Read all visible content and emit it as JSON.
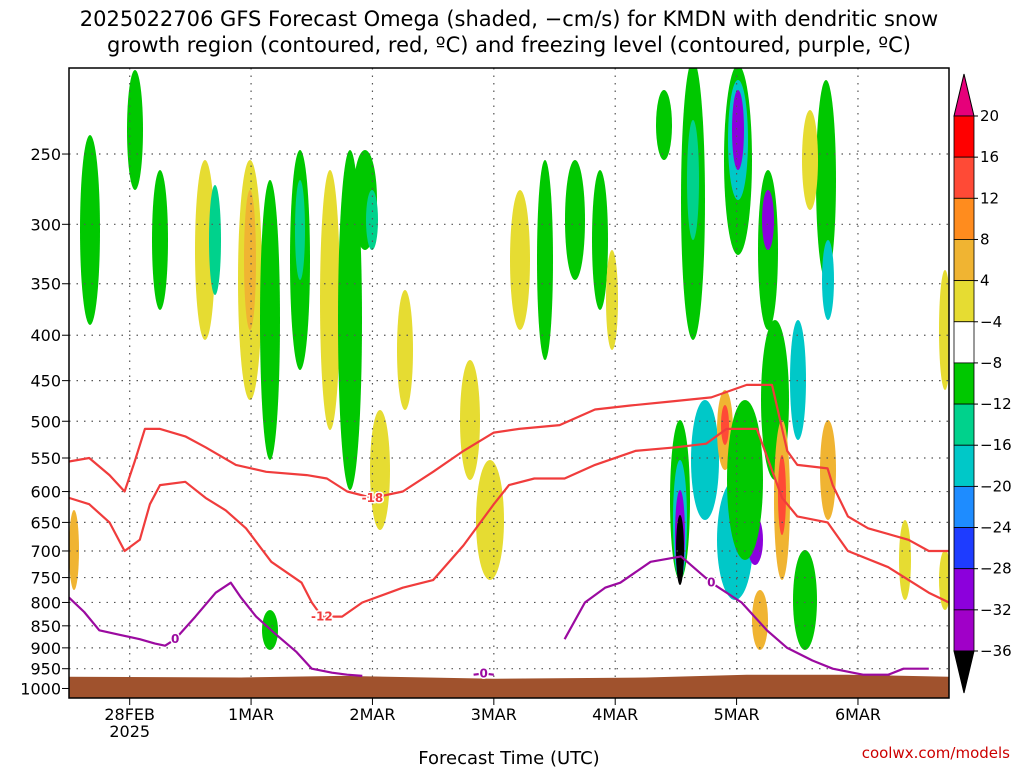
{
  "title_line1": "2025022706 GFS Forecast Omega (shaded, −cm/s) for KMDN with dendritic snow",
  "title_line2": "growth region (contoured, red, ºC) and freezing level (contoured, purple, ºC)",
  "credit": "coolwx.com/models",
  "chart_data": {
    "type": "heatmap",
    "title": "2025022706 GFS Forecast Omega (shaded, −cm/s) for KMDN with dendritic snow growth region (contoured, red, ºC) and freezing level (contoured, purple, ºC)",
    "xlabel": "Forecast Time (UTC)",
    "ylabel": "",
    "x_ticks": [
      {
        "label": "28FEB",
        "sublabel": "2025",
        "t": 18
      },
      {
        "label": "1MAR",
        "sublabel": "",
        "t": 42
      },
      {
        "label": "2MAR",
        "sublabel": "",
        "t": 66
      },
      {
        "label": "3MAR",
        "sublabel": "",
        "t": 90
      },
      {
        "label": "4MAR",
        "sublabel": "",
        "t": 114
      },
      {
        "label": "5MAR",
        "sublabel": "",
        "t": 138
      },
      {
        "label": "6MAR",
        "sublabel": "",
        "t": 162
      }
    ],
    "y_levels": [
      250,
      300,
      350,
      400,
      450,
      500,
      550,
      600,
      650,
      700,
      750,
      800,
      850,
      900,
      950,
      1000
    ],
    "y_top": 200,
    "y_bottom": 1025,
    "x_range": [
      6,
      180
    ],
    "grid": true,
    "colorbar": {
      "tick_labels": [
        "20",
        "16",
        "12",
        "8",
        "4",
        "−4",
        "−8",
        "−12",
        "−16",
        "−20",
        "−24",
        "−28",
        "−32",
        "−36"
      ],
      "colors": [
        "#ff0000",
        "#ff4a36",
        "#ff8c1e",
        "#f0b432",
        "#e6dc32",
        "#ffffff",
        "#00c800",
        "#00d28c",
        "#00c8c8",
        "#1e8cff",
        "#1e3cff",
        "#8c00dc",
        "#a000c8",
        "#a0a0a0"
      ],
      "top_color": "#e6007a",
      "bottom_color": "#000000"
    },
    "terrain_color": "#a0522d",
    "series": [
      {
        "label": "-18",
        "color": "#f03c3c",
        "points": [
          [
            6,
            555
          ],
          [
            10,
            550
          ],
          [
            14,
            575
          ],
          [
            17,
            600
          ],
          [
            19,
            555
          ],
          [
            21,
            510
          ],
          [
            24,
            510
          ],
          [
            29,
            520
          ],
          [
            33,
            535
          ],
          [
            39,
            560
          ],
          [
            45,
            570
          ],
          [
            53,
            575
          ],
          [
            57,
            580
          ],
          [
            61,
            600
          ],
          [
            66,
            610
          ],
          [
            72,
            600
          ],
          [
            78,
            570
          ],
          [
            84,
            540
          ],
          [
            90,
            515
          ],
          [
            95,
            510
          ],
          [
            103,
            505
          ],
          [
            110,
            485
          ],
          [
            117,
            480
          ],
          [
            125,
            475
          ],
          [
            133,
            470
          ],
          [
            140,
            455
          ],
          [
            145,
            455
          ],
          [
            148,
            540
          ],
          [
            150,
            560
          ],
          [
            156,
            565
          ],
          [
            157,
            590
          ],
          [
            160,
            640
          ],
          [
            164,
            660
          ],
          [
            172,
            680
          ],
          [
            176,
            700
          ],
          [
            180,
            700
          ]
        ]
      },
      {
        "label": "-12",
        "color": "#f03c3c",
        "points": [
          [
            6,
            610
          ],
          [
            10,
            620
          ],
          [
            14,
            650
          ],
          [
            17,
            700
          ],
          [
            20,
            680
          ],
          [
            22,
            620
          ],
          [
            24,
            590
          ],
          [
            29,
            585
          ],
          [
            33,
            610
          ],
          [
            37,
            630
          ],
          [
            41,
            660
          ],
          [
            46,
            720
          ],
          [
            52,
            760
          ],
          [
            54,
            800
          ],
          [
            56,
            830
          ],
          [
            60,
            830
          ],
          [
            64,
            800
          ],
          [
            72,
            770
          ],
          [
            78,
            755
          ],
          [
            84,
            690
          ],
          [
            90,
            620
          ],
          [
            93,
            590
          ],
          [
            98,
            580
          ],
          [
            104,
            580
          ],
          [
            110,
            560
          ],
          [
            118,
            540
          ],
          [
            126,
            535
          ],
          [
            132,
            530
          ],
          [
            136,
            510
          ],
          [
            142,
            510
          ],
          [
            147,
            610
          ],
          [
            150,
            640
          ],
          [
            156,
            650
          ],
          [
            160,
            700
          ],
          [
            168,
            730
          ],
          [
            176,
            780
          ],
          [
            180,
            800
          ]
        ]
      },
      {
        "label": "0",
        "color": "#9b0aa0",
        "points": [
          [
            6,
            790
          ],
          [
            9,
            820
          ],
          [
            12,
            860
          ],
          [
            16,
            870
          ],
          [
            20,
            880
          ],
          [
            23,
            890
          ],
          [
            25,
            895
          ],
          [
            27,
            880
          ],
          [
            31,
            830
          ],
          [
            35,
            780
          ],
          [
            38,
            760
          ],
          [
            40,
            790
          ],
          [
            43,
            830
          ],
          [
            47,
            870
          ],
          [
            51,
            910
          ],
          [
            54,
            950
          ],
          [
            58,
            960
          ],
          [
            61,
            965
          ],
          [
            64,
            968
          ]
        ]
      },
      {
        "label": "0",
        "color": "#9b0aa0",
        "points": [
          [
            86,
            965
          ],
          [
            88,
            962
          ],
          [
            90,
            965
          ]
        ]
      },
      {
        "label": "0",
        "color": "#9b0aa0",
        "points": [
          [
            104,
            880
          ],
          [
            108,
            800
          ],
          [
            112,
            770
          ],
          [
            115,
            760
          ],
          [
            121,
            720
          ],
          [
            127,
            710
          ],
          [
            133,
            760
          ],
          [
            139,
            800
          ],
          [
            144,
            860
          ],
          [
            148,
            900
          ],
          [
            153,
            930
          ],
          [
            157,
            950
          ],
          [
            163,
            965
          ],
          [
            168,
            965
          ],
          [
            171,
            950
          ],
          [
            176,
            950
          ]
        ]
      }
    ],
    "annotations": [
      "-18",
      "-12",
      "0"
    ]
  }
}
